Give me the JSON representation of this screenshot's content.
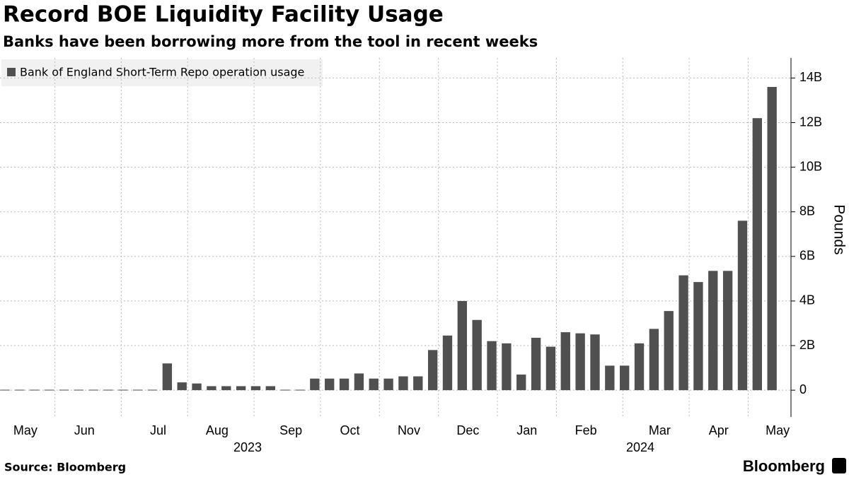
{
  "chart_data": {
    "type": "bar",
    "title": "Record BOE Liquidity Facility Usage",
    "subtitle": "Banks have been borrowing more from the tool in recent weeks",
    "y_axis_label": "Pounds",
    "source": "Source: Bloomberg",
    "brand": "Bloomberg",
    "series": [
      {
        "name": "Bank of England Short-Term Repo operation usage",
        "color": "#505050",
        "values": [
          0.02,
          0.02,
          0.02,
          0.02,
          0.02,
          0.02,
          0.02,
          0.02,
          0.02,
          0.02,
          0.02,
          1.2,
          0.35,
          0.3,
          0.18,
          0.18,
          0.18,
          0.18,
          0.18,
          0.02,
          0.02,
          0.52,
          0.52,
          0.52,
          0.75,
          0.52,
          0.52,
          0.62,
          0.62,
          1.8,
          2.45,
          4.0,
          3.15,
          2.2,
          2.1,
          0.7,
          2.35,
          1.95,
          2.6,
          2.55,
          2.5,
          1.1,
          1.1,
          2.1,
          2.75,
          3.55,
          5.15,
          4.85,
          5.35,
          5.35,
          7.6,
          12.2,
          13.6
        ]
      }
    ],
    "categories": [
      null,
      "May",
      null,
      null,
      null,
      "Jun",
      null,
      null,
      null,
      null,
      "Jul",
      null,
      null,
      null,
      "Aug",
      null,
      null,
      null,
      null,
      "Sep",
      null,
      null,
      null,
      "Oct",
      null,
      null,
      null,
      "Nov",
      null,
      null,
      null,
      "Dec",
      null,
      null,
      null,
      "Jan",
      null,
      null,
      null,
      "Feb",
      null,
      null,
      null,
      null,
      "Mar",
      null,
      null,
      null,
      "Apr",
      null,
      null,
      null,
      "May"
    ],
    "year_labels": [
      "2023",
      "2024"
    ],
    "ylim": [
      -1.2,
      14.9
    ],
    "yticks": [
      0,
      {
        "value": 2,
        "label": "2B"
      },
      {
        "value": 4,
        "label": "4B"
      },
      {
        "value": 6,
        "label": "6B"
      },
      {
        "value": 8,
        "label": "8B"
      },
      {
        "value": 10,
        "label": "10B"
      },
      {
        "value": 12,
        "label": "12B"
      },
      {
        "value": 14,
        "label": "14B"
      }
    ],
    "grid": true
  }
}
